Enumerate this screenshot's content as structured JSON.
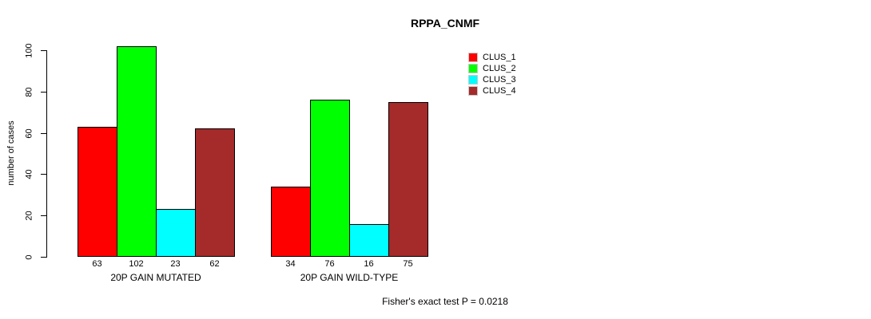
{
  "page": {
    "background": "#ffffff"
  },
  "chart_data": {
    "type": "bar",
    "title": "RPPA_CNMF",
    "ylabel": "number of cases",
    "xlabel": "",
    "ylim": [
      0,
      100
    ],
    "yticks": [
      0,
      20,
      40,
      60,
      80,
      100
    ],
    "grid": false,
    "legend_position": "top-right",
    "categories": [
      "20P GAIN MUTATED",
      "20P GAIN WILD-TYPE"
    ],
    "series": [
      {
        "name": "CLUS_1",
        "color": "#ff0000",
        "values": [
          63,
          34
        ]
      },
      {
        "name": "CLUS_2",
        "color": "#00ff00",
        "values": [
          102,
          76
        ]
      },
      {
        "name": "CLUS_3",
        "color": "#00ffff",
        "values": [
          23,
          16
        ]
      },
      {
        "name": "CLUS_4",
        "color": "#a52a2a",
        "values": [
          62,
          75
        ]
      }
    ],
    "bar_values_labeled": true,
    "annotation": "Fisher's exact test P = 0.0218"
  }
}
